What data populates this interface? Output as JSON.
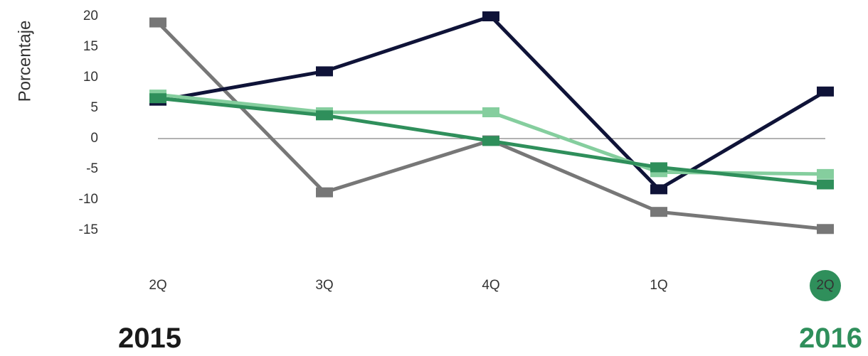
{
  "chart_data": {
    "type": "line",
    "ylabel": "Porcentaje",
    "categories": [
      "2Q",
      "3Q",
      "4Q",
      "1Q",
      "2Q"
    ],
    "yticks": [
      20,
      15,
      10,
      5,
      0,
      -5,
      -10,
      -15
    ],
    "ylim": [
      -15,
      20
    ],
    "highlight_category_index": 4,
    "highlight_color": "#2f8f5b",
    "zero_line": true,
    "grid": false,
    "years": {
      "left": "2015",
      "right": "2016"
    },
    "series": [
      {
        "color": "#777777",
        "values": [
          19,
          -8.8,
          -0.3,
          -12,
          -14.8
        ]
      },
      {
        "color": "#0f1338",
        "values": [
          6.2,
          11,
          20,
          -8.3,
          7.7
        ]
      },
      {
        "color": "#85ce9e",
        "values": [
          7.2,
          4.3,
          4.3,
          -5.5,
          -5.8
        ]
      },
      {
        "color": "#2f8f5b",
        "values": [
          6.6,
          3.8,
          -0.4,
          -4.7,
          -7.5
        ]
      }
    ]
  }
}
